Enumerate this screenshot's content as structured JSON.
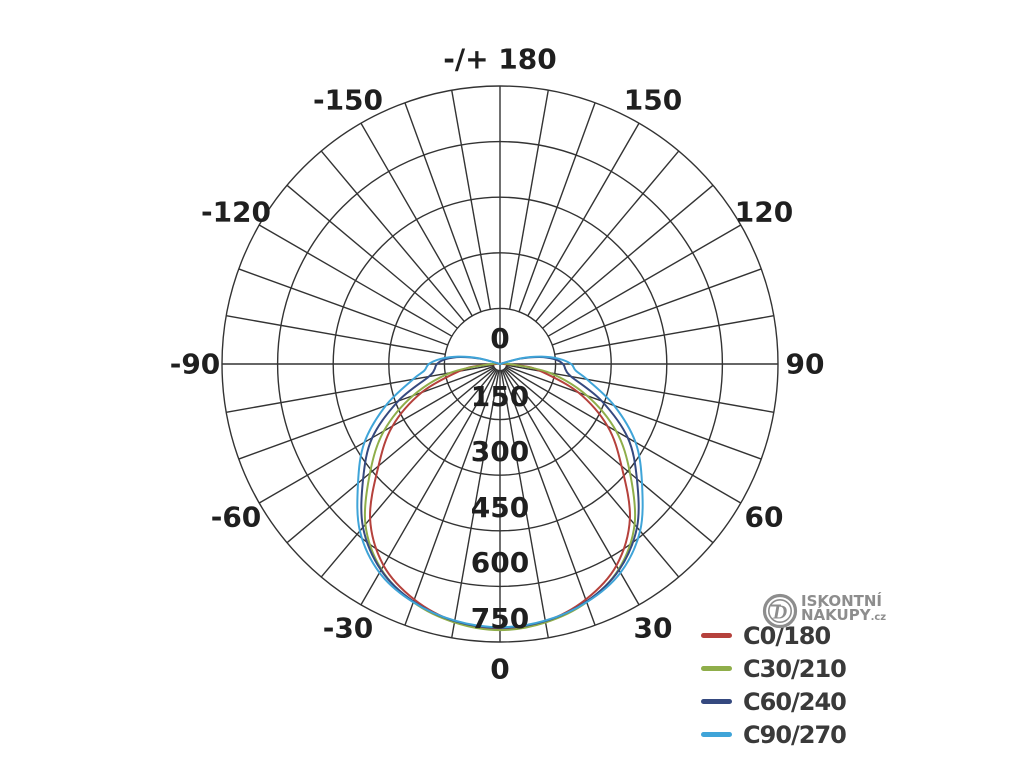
{
  "chart_data": {
    "type": "polar_photometric",
    "description": "Luminous intensity distribution (polar curve) of a luminaire, C-plane curves",
    "angular_ticks": [
      {
        "label": "0",
        "deg": 0
      },
      {
        "label": "30",
        "deg": 30
      },
      {
        "label": "60",
        "deg": 60
      },
      {
        "label": "90",
        "deg": 90
      },
      {
        "label": "120",
        "deg": 120
      },
      {
        "label": "150",
        "deg": 150
      },
      {
        "label": "-/+ 180",
        "deg": 180
      },
      {
        "label": "-150",
        "deg": -150
      },
      {
        "label": "-120",
        "deg": -120
      },
      {
        "label": "-90",
        "deg": -90
      },
      {
        "label": "-60",
        "deg": -60
      },
      {
        "label": "-30",
        "deg": -30
      }
    ],
    "radial_ticks": [
      "0",
      "150",
      "300",
      "450",
      "600",
      "750"
    ],
    "radial_max": 750,
    "ring_step": 150,
    "spoke_step_deg": 10,
    "grid_color": "#333333",
    "legend_position": "bottom-right",
    "series": [
      {
        "name": "C0/180",
        "color": "#b5413c",
        "points": [
          [
            -90,
            10
          ],
          [
            -85,
            60
          ],
          [
            -80,
            112
          ],
          [
            -70,
            225
          ],
          [
            -60,
            335
          ],
          [
            -50,
            428
          ],
          [
            -40,
            545
          ],
          [
            -30,
            628
          ],
          [
            -20,
            676
          ],
          [
            -10,
            705
          ],
          [
            0,
            715
          ],
          [
            10,
            705
          ],
          [
            20,
            676
          ],
          [
            30,
            628
          ],
          [
            40,
            545
          ],
          [
            50,
            428
          ],
          [
            60,
            335
          ],
          [
            70,
            225
          ],
          [
            80,
            112
          ],
          [
            85,
            60
          ],
          [
            90,
            10
          ]
        ]
      },
      {
        "name": "C30/210",
        "color": "#8fae4a",
        "points": [
          [
            -92,
            0
          ],
          [
            -90,
            22
          ],
          [
            -80,
            135
          ],
          [
            -70,
            250
          ],
          [
            -60,
            362
          ],
          [
            -50,
            458
          ],
          [
            -40,
            565
          ],
          [
            -30,
            640
          ],
          [
            -20,
            684
          ],
          [
            -10,
            708
          ],
          [
            0,
            718
          ],
          [
            10,
            708
          ],
          [
            20,
            684
          ],
          [
            30,
            640
          ],
          [
            40,
            565
          ],
          [
            50,
            458
          ],
          [
            60,
            362
          ],
          [
            70,
            250
          ],
          [
            80,
            135
          ],
          [
            90,
            22
          ],
          [
            92,
            0
          ]
        ]
      },
      {
        "name": "C60/240",
        "color": "#35497f",
        "points": [
          [
            -110,
            0
          ],
          [
            -105,
            55
          ],
          [
            -100,
            108
          ],
          [
            -95,
            148
          ],
          [
            -90,
            170
          ],
          [
            -85,
            178
          ],
          [
            -80,
            195
          ],
          [
            -70,
            292
          ],
          [
            -60,
            398
          ],
          [
            -50,
            482
          ],
          [
            -40,
            575
          ],
          [
            -30,
            642
          ],
          [
            -20,
            682
          ],
          [
            -10,
            704
          ],
          [
            0,
            712
          ],
          [
            10,
            704
          ],
          [
            20,
            682
          ],
          [
            30,
            642
          ],
          [
            40,
            575
          ],
          [
            50,
            482
          ],
          [
            60,
            398
          ],
          [
            70,
            292
          ],
          [
            80,
            195
          ],
          [
            85,
            178
          ],
          [
            90,
            170
          ],
          [
            95,
            148
          ],
          [
            100,
            108
          ],
          [
            105,
            55
          ],
          [
            110,
            0
          ]
        ]
      },
      {
        "name": "C90/270",
        "color": "#3fa4d8",
        "points": [
          [
            -110,
            0
          ],
          [
            -105,
            62
          ],
          [
            -100,
            115
          ],
          [
            -95,
            160
          ],
          [
            -90,
            192
          ],
          [
            -85,
            205
          ],
          [
            -80,
            238
          ],
          [
            -70,
            328
          ],
          [
            -60,
            422
          ],
          [
            -50,
            500
          ],
          [
            -40,
            588
          ],
          [
            -30,
            650
          ],
          [
            -20,
            684
          ],
          [
            -10,
            703
          ],
          [
            0,
            710
          ],
          [
            10,
            703
          ],
          [
            20,
            684
          ],
          [
            30,
            650
          ],
          [
            40,
            588
          ],
          [
            50,
            500
          ],
          [
            60,
            422
          ],
          [
            70,
            328
          ],
          [
            80,
            238
          ],
          [
            85,
            205
          ],
          [
            90,
            192
          ],
          [
            95,
            160
          ],
          [
            100,
            115
          ],
          [
            105,
            62
          ],
          [
            110,
            0
          ]
        ]
      }
    ]
  },
  "watermark": {
    "logo_letter": "D",
    "line1": "ISKONTNÍ",
    "line2": "NÁKUPY",
    "tld": ".cz",
    "color": "#8d8d8d"
  }
}
